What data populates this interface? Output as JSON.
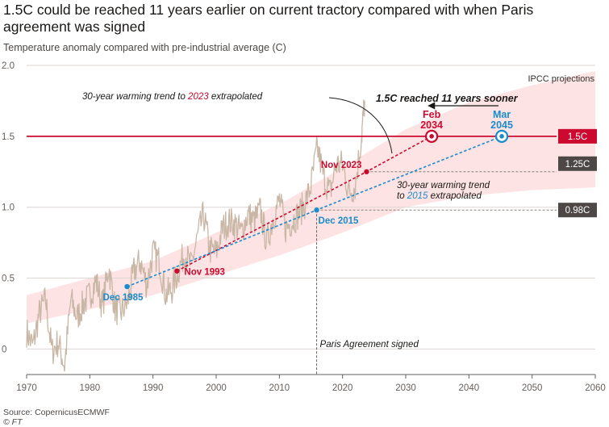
{
  "title": "1.5C could be reached 11 years earlier on current tractory compared with when Paris agreement was signed",
  "subtitle": "Temperature anomaly compared with pre-industrial average (C)",
  "source": "Source: CopernicusECMWF",
  "credit": "© FT",
  "colors": {
    "series": "#c9b7a6",
    "trend2023": "#cc0a2f",
    "trend2015": "#1a8ccb",
    "band": "#fde3e3",
    "threshold": "#cc0a2f",
    "label_dark": "#4d4845"
  },
  "chart_data": {
    "type": "line",
    "title": "1.5C could be reached 11 years earlier on current tractory compared with when Paris agreement was signed",
    "ylabel": "Temperature anomaly compared with pre-industrial average (C)",
    "xlim": [
      1970,
      2060
    ],
    "ylim": [
      -0.18,
      2.0
    ],
    "x_ticks": [
      1970,
      1980,
      1990,
      2000,
      2010,
      2020,
      2030,
      2040,
      2050,
      2060
    ],
    "y_ticks": [
      0,
      0.5,
      1.0,
      1.5,
      2.0
    ],
    "y_tick_labels": [
      "0",
      "0.5",
      "1.0",
      "1.5",
      "2.0"
    ],
    "grid": "horizontal",
    "series": [
      {
        "name": "",
        "x": [
          1970,
          1971,
          1972,
          1973,
          1974,
          1975,
          1976,
          1977,
          1978,
          1979,
          1980,
          1981,
          1982,
          1983,
          1984,
          1985,
          1986,
          1987,
          1988,
          1989,
          1990,
          1991,
          1992,
          1993,
          1994,
          1995,
          1996,
          1997,
          1998,
          1999,
          2000,
          2001,
          2002,
          2003,
          2004,
          2005,
          2006,
          2007,
          2008,
          2009,
          2010,
          2011,
          2012,
          2013,
          2014,
          2015,
          2016,
          2017,
          2018,
          2019,
          2020,
          2021,
          2022,
          2023,
          2023.5
        ],
        "y": [
          0.12,
          0.02,
          0.25,
          0.35,
          -0.02,
          0.05,
          -0.12,
          0.35,
          0.22,
          0.32,
          0.38,
          0.48,
          0.3,
          0.58,
          0.28,
          0.26,
          0.33,
          0.55,
          0.62,
          0.45,
          0.68,
          0.62,
          0.38,
          0.42,
          0.55,
          0.68,
          0.58,
          0.78,
          0.95,
          0.7,
          0.68,
          0.85,
          0.9,
          0.88,
          0.82,
          0.95,
          0.9,
          0.98,
          0.75,
          0.92,
          1.05,
          0.85,
          0.9,
          0.95,
          1.02,
          1.15,
          1.42,
          1.22,
          1.1,
          1.3,
          1.3,
          1.1,
          1.15,
          1.5,
          1.75
        ]
      },
      {
        "name": "30-year warming trend to 2023 extrapolated",
        "x": [
          1993.8,
          2023.8,
          2034.1
        ],
        "y": [
          0.55,
          1.25,
          1.5
        ]
      },
      {
        "name": "30-year warming trend to 2015 extrapolated",
        "x": [
          1985.9,
          2015.9,
          2045.2
        ],
        "y": [
          0.44,
          0.98,
          1.5
        ]
      }
    ],
    "band": {
      "name": "IPCC projections",
      "x": [
        1970,
        1990,
        2000,
        2010,
        2020,
        2030,
        2040,
        2050,
        2060
      ],
      "lower": [
        0.18,
        0.38,
        0.52,
        0.66,
        0.82,
        1.0,
        1.08,
        1.12,
        1.14
      ],
      "upper": [
        0.38,
        0.62,
        0.82,
        1.02,
        1.28,
        1.55,
        1.74,
        1.86,
        1.96
      ]
    },
    "reference_lines": [
      {
        "y": 1.5,
        "label": "1.5C"
      },
      {
        "y": 1.25,
        "label": "1.25C"
      },
      {
        "y": 0.98,
        "label": "0.98C"
      }
    ],
    "vertical_line": {
      "x": 2015.9,
      "label": "Paris Agreement signed"
    },
    "points": [
      {
        "x": 1985.9,
        "y": 0.44,
        "label": "Dec 1985",
        "series": "trend2015"
      },
      {
        "x": 2015.9,
        "y": 0.98,
        "label": "Dec 2015",
        "series": "trend2015"
      },
      {
        "x": 1993.8,
        "y": 0.55,
        "label": "Nov 1993",
        "series": "trend2023"
      },
      {
        "x": 2023.8,
        "y": 1.25,
        "label": "Nov 2023",
        "series": "trend2023"
      },
      {
        "x": 2034.1,
        "y": 1.5,
        "label": [
          "Feb",
          "2034"
        ],
        "series": "trend2023"
      },
      {
        "x": 2045.2,
        "y": 1.5,
        "label": [
          "Mar",
          "2045"
        ],
        "series": "trend2015"
      }
    ],
    "annotations": {
      "ipcc": "IPCC projections",
      "trend2023": {
        "pre": "30-year warming trend to ",
        "year": "2023",
        "post": " extrapolated"
      },
      "trend2015": {
        "line1": "30-year warming trend",
        "pre": "to ",
        "year": "2015",
        "post": " extrapolated"
      },
      "sooner": "1.5C reached 11 years sooner",
      "paris": "Paris Agreement signed"
    }
  }
}
